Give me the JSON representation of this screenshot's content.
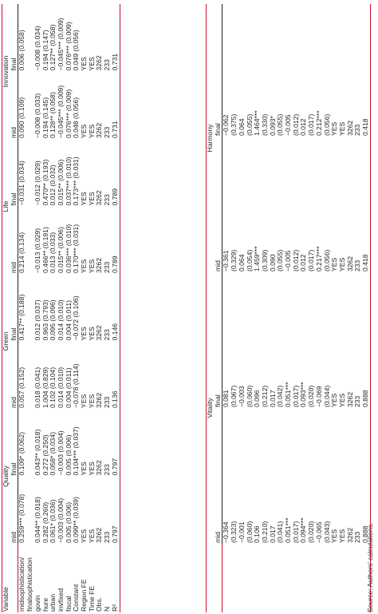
{
  "table1": {
    "variable_header": "Variable",
    "groups": [
      "Quality",
      "Green",
      "Life",
      "Innovation"
    ],
    "subheaders": [
      "mid",
      "final",
      "mid",
      "final",
      "mid",
      "final",
      "mid",
      "final"
    ],
    "rows": [
      {
        "label": "midsophistication/ finalsophistication",
        "cells": [
          "0.259*** (0.078)",
          "0.109* (0.062)",
          "0.057 (0.152)",
          "0.417** (0.188)",
          "0.214 (0.134)",
          "−0.031 (0.034)",
          "0.090 (0.109)",
          "0.006 (0.058)"
        ]
      },
      {
        "label": "govin",
        "cells": [
          "0.044** (0.018)",
          "0.043** (0.018)",
          "0.018 (0.041)",
          "0.012 (0.037)",
          "−0.013 (0.029)",
          "−0.012 (0.029)",
          "−0.008 (0.033)",
          "−0.008 (0.034)"
        ]
      },
      {
        "label": "hure",
        "cells": [
          "0.282 (0.260)",
          "0.272 (0.250)",
          "1.004 (0.829)",
          "0.963 (0.793)",
          "0.466** (0.191)",
          "0.470** (0.193)",
          "0.194 (0.145)",
          "0.194 (0.147)"
        ]
      },
      {
        "label": "urban",
        "cells": [
          "0.061* (0.036)",
          "0.058* (0.034)",
          "0.102 (0.104)",
          "0.095 (0.096)",
          "0.013 (0.033)",
          "0.012 (0.032)",
          "0.128** (0.058)",
          "0.127** (0.058)"
        ]
      },
      {
        "label": "invfixed",
        "cells": [
          "−0.003 (0.004)",
          "−0.003 (0.004)",
          "0.014 (0.010)",
          "0.014 (0.010)",
          "0.015** (0.006)",
          "0.015** (0.006)",
          "−0.045*** (0.009)",
          "−0.045*** (0.009)"
        ]
      },
      {
        "label": "fiscal",
        "cells": [
          "0.005 (0.006)",
          "0.005 (0.006)",
          "0.004 (0.011)",
          "0.004 (0.011)",
          "0.036*** (0.010)",
          "0.037*** (0.010)",
          "0.076*** (0.009)",
          "0.076*** (0.009)"
        ]
      },
      {
        "label": "Constant",
        "cells": [
          "0.099** (0.039)",
          "0.104*** (0.037)",
          "−0.078 (0.114)",
          "−0.072 (0.106)",
          "0.170*** (0.031)",
          "0.173*** (0.031)",
          "0.048 (0.056)",
          "0.049 (0.056)"
        ]
      },
      {
        "label": "Region FE",
        "cells": [
          "YES",
          "YES",
          "YES",
          "YES",
          "YES",
          "YES",
          "YES",
          "YES"
        ]
      },
      {
        "label": "Time FE",
        "cells": [
          "YES",
          "YES",
          "YES",
          "YES",
          "YES",
          "YES",
          "YES",
          "YES"
        ]
      },
      {
        "label": "Obs.",
        "cells": [
          "3262",
          "3262",
          "3262",
          "3262",
          "3262",
          "3262",
          "3262",
          "3262"
        ]
      },
      {
        "label": "N",
        "cells": [
          "233",
          "233",
          "233",
          "233",
          "233",
          "233",
          "233",
          "233"
        ]
      },
      {
        "label": "R²",
        "cells": [
          "0.797",
          "0.797",
          "0.136",
          "0.146",
          "0.789",
          "0.789",
          "0.731",
          "0.731"
        ]
      }
    ]
  },
  "table2": {
    "groups": [
      "Vitality",
      "Harmony"
    ],
    "subheaders": [
      "mid",
      "final",
      "mid",
      "final"
    ],
    "rows": [
      [
        "−0.364",
        "0.081",
        "−0.361",
        "−0.062"
      ],
      [
        "(0.323)",
        "(0.067)",
        "(0.329)",
        "(0.375)"
      ],
      [
        "−0.001",
        "−0.003",
        "0.064",
        "0.064"
      ],
      [
        "(0.060)",
        "(0.060)",
        "(0.054)",
        "(0.055)"
      ],
      [
        "0.106",
        "0.096",
        "1.459***",
        "1.464***"
      ],
      [
        "(0.210)",
        "(0.212)",
        "(0.309)",
        "(0.330)"
      ],
      [
        "0.017",
        "0.017",
        "0.090",
        "0.093*"
      ],
      [
        "(0.041)",
        "(0.042)",
        "(0.055)",
        "(0.055)"
      ],
      [
        "0.051***",
        "0.051***",
        "−0.005",
        "−0.005"
      ],
      [
        "(0.017)",
        "(0.017)",
        "(0.012)",
        "(0.012)"
      ],
      [
        "0.094***",
        "0.093***",
        "0.012",
        "0.012"
      ],
      [
        "(0.020)",
        "(0.020)",
        "(0.017)",
        "(0.017)"
      ],
      [
        "−0.065",
        "−0.069",
        "0.217***",
        "0.212***"
      ],
      [
        "(0.043)",
        "(0.044)",
        "(0.056)",
        "(0.056)"
      ],
      [
        "YES",
        "YES",
        "YES",
        "YES"
      ],
      [
        "YES",
        "YES",
        "YES",
        "YES"
      ],
      [
        "3262",
        "3262",
        "3262",
        "3262"
      ],
      [
        "233",
        "233",
        "233",
        "233"
      ],
      [
        "0.888",
        "0.888",
        "0.418",
        "0.418"
      ]
    ]
  },
  "source": "Source: Authors’ calculations."
}
